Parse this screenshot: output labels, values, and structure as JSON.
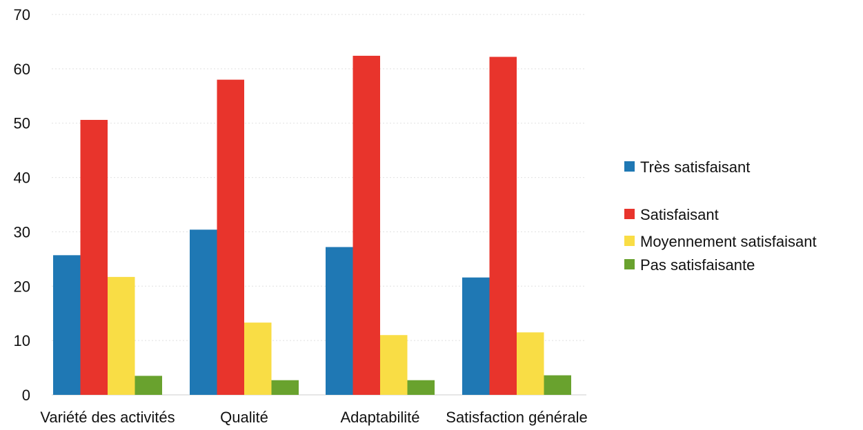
{
  "chart_data": {
    "type": "bar",
    "title": "",
    "xlabel": "",
    "ylabel": "",
    "ylim": [
      0,
      70
    ],
    "yticks": [
      0,
      10,
      20,
      30,
      40,
      50,
      60,
      70
    ],
    "grid": true,
    "legend_position": "right",
    "categories": [
      "Variété des activités",
      "Qualité",
      "Adaptabilité",
      "Satisfaction générale"
    ],
    "series": [
      {
        "name": "Très satisfaisant",
        "color": "#1f78b4",
        "values": [
          25.7,
          30.4,
          27.2,
          21.6
        ]
      },
      {
        "name": "Satisfaisant",
        "color": "#e8342c",
        "values": [
          50.6,
          58.0,
          62.4,
          62.2
        ]
      },
      {
        "name": "Moyennement satisfaisant",
        "color": "#f9dd45",
        "values": [
          21.7,
          13.3,
          11.0,
          11.5
        ]
      },
      {
        "name": "Pas satisfaisante",
        "color": "#69a22e",
        "values": [
          3.5,
          2.7,
          2.7,
          3.6
        ]
      }
    ]
  }
}
